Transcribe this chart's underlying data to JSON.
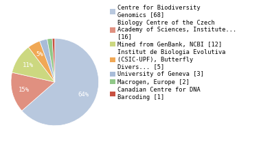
{
  "labels": [
    "Centre for Biodiversity\nGenomics [68]",
    "Biology Centre of the Czech\nAcademy of Sciences, Institute...\n[16]",
    "Mined from GenBank, NCBI [12]",
    "Institut de Biologia Evolutiva\n(CSIC-UPF), Butterfly\nDivers... [5]",
    "University of Geneva [3]",
    "Macrogen, Europe [2]",
    "Canadian Centre for DNA\nBarcoding [1]"
  ],
  "values": [
    68,
    16,
    12,
    5,
    3,
    2,
    1
  ],
  "colors": [
    "#b8c8de",
    "#e09080",
    "#ccd880",
    "#f0a855",
    "#a8bcd8",
    "#90c888",
    "#c85040"
  ],
  "startangle": 90,
  "pct_fontsize": 6.5,
  "legend_fontsize": 6.2,
  "figsize": [
    3.8,
    2.4
  ],
  "dpi": 100
}
